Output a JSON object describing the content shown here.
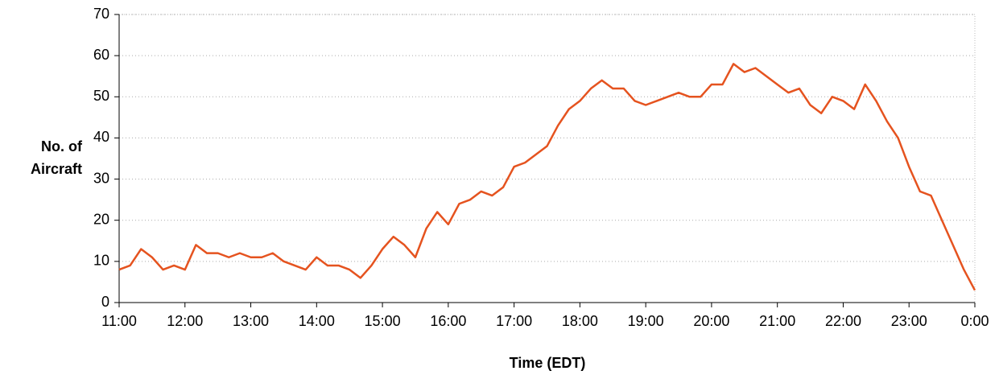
{
  "chart_data": {
    "type": "line",
    "xlabel": "Time (EDT)",
    "ylabel": "No. of Aircraft",
    "x": [
      660,
      670,
      680,
      690,
      700,
      710,
      720,
      730,
      740,
      750,
      760,
      770,
      780,
      790,
      800,
      810,
      820,
      830,
      840,
      850,
      860,
      870,
      880,
      890,
      900,
      910,
      920,
      930,
      940,
      950,
      960,
      970,
      980,
      990,
      1000,
      1010,
      1020,
      1030,
      1040,
      1050,
      1060,
      1070,
      1080,
      1090,
      1100,
      1110,
      1120,
      1130,
      1140,
      1150,
      1160,
      1170,
      1180,
      1190,
      1200,
      1210,
      1220,
      1230,
      1240,
      1250,
      1260,
      1270,
      1280,
      1290,
      1300,
      1310,
      1320,
      1330,
      1340,
      1350,
      1360,
      1370,
      1380,
      1390,
      1400,
      1410,
      1420,
      1430,
      1440
    ],
    "series": [
      {
        "color": "#e5531f",
        "values": [
          8,
          9,
          13,
          11,
          8,
          9,
          8,
          14,
          12,
          12,
          11,
          12,
          11,
          11,
          12,
          10,
          9,
          8,
          11,
          9,
          9,
          8,
          6,
          9,
          13,
          16,
          14,
          11,
          18,
          22,
          19,
          24,
          25,
          27,
          26,
          28,
          33,
          34,
          36,
          38,
          43,
          47,
          49,
          52,
          54,
          52,
          52,
          49,
          48,
          49,
          50,
          51,
          50,
          50,
          53,
          53,
          58,
          56,
          57,
          55,
          53,
          51,
          52,
          48,
          46,
          50,
          49,
          47,
          53,
          49,
          44,
          40,
          33,
          27,
          26,
          20,
          14,
          8,
          3
        ]
      }
    ],
    "xlim": [
      660,
      1440
    ],
    "xticks": [
      {
        "value": 660,
        "label": "11:00"
      },
      {
        "value": 720,
        "label": "12:00"
      },
      {
        "value": 780,
        "label": "13:00"
      },
      {
        "value": 840,
        "label": "14:00"
      },
      {
        "value": 900,
        "label": "15:00"
      },
      {
        "value": 960,
        "label": "16:00"
      },
      {
        "value": 1020,
        "label": "17:00"
      },
      {
        "value": 1080,
        "label": "18:00"
      },
      {
        "value": 1140,
        "label": "19:00"
      },
      {
        "value": 1200,
        "label": "20:00"
      },
      {
        "value": 1260,
        "label": "21:00"
      },
      {
        "value": 1320,
        "label": "22:00"
      },
      {
        "value": 1380,
        "label": "23:00"
      },
      {
        "value": 1440,
        "label": "0:00"
      }
    ],
    "ylim": [
      0,
      70
    ],
    "yticks": [
      0,
      10,
      20,
      30,
      40,
      50,
      60,
      70
    ],
    "grid": true
  }
}
